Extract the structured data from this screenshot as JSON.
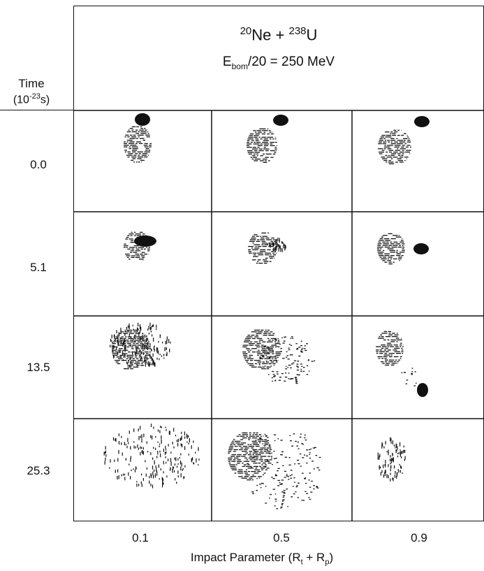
{
  "header": {
    "reaction": {
      "proj_mass": "20",
      "proj_sym": "Ne",
      "plus": "+",
      "targ_mass": "238",
      "targ_sym": "U"
    },
    "energy": {
      "E": "E",
      "sub": "bom",
      "rest": "/20 = 250  MeV"
    }
  },
  "time_axis": {
    "label": "Time",
    "unit_open": "(10",
    "unit_exp": "-23",
    "unit_close": "s)",
    "values": [
      "0.0",
      "5.1",
      "13.5",
      "25.3"
    ]
  },
  "impact_axis": {
    "values": [
      "0.1",
      "0.5",
      "0.9"
    ],
    "label_main": "Impact Parameter (R",
    "sub_t": "t",
    "plus": " + R",
    "sub_p": "p",
    "close": ")"
  }
}
